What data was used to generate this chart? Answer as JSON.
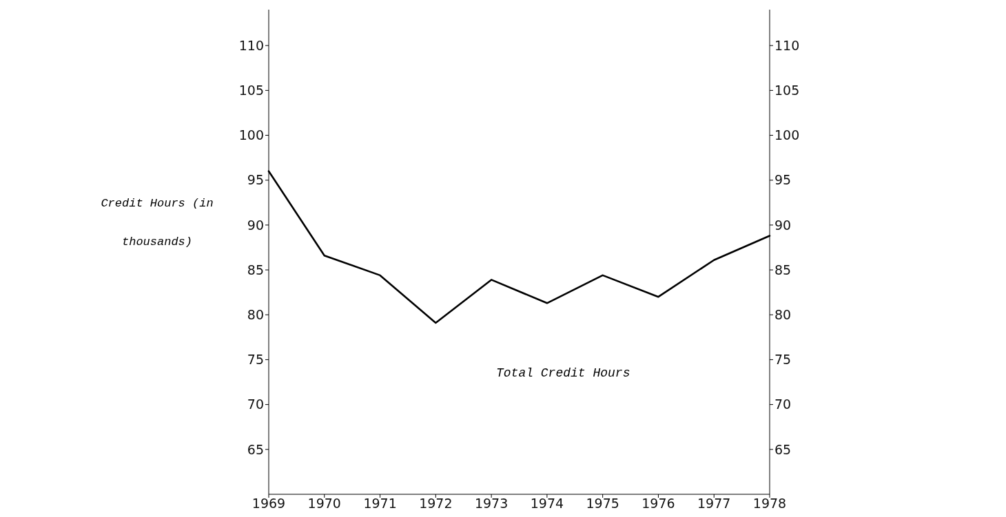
{
  "chart_data": {
    "type": "line",
    "ylabel": "Credit Hours (in thousands)",
    "categories": [
      "1969",
      "1970",
      "1971",
      "1972",
      "1973",
      "1974",
      "1975",
      "1976",
      "1977",
      "1978"
    ],
    "series": [
      {
        "name": "Total Credit Hours",
        "color": "#000000",
        "values": [
          96.0,
          86.6,
          84.4,
          79.1,
          83.9,
          81.3,
          84.4,
          82.0,
          86.1,
          88.8
        ]
      }
    ],
    "ylim": [
      60,
      114
    ],
    "yticks": [
      65,
      70,
      75,
      80,
      85,
      90,
      95,
      100,
      105,
      110
    ],
    "y2lim": [
      60,
      114
    ],
    "y2ticks": [
      65,
      70,
      75,
      80,
      85,
      90,
      95,
      100,
      105,
      110
    ],
    "grid": false,
    "legend": false,
    "marker": "none",
    "line_style": "solid"
  }
}
